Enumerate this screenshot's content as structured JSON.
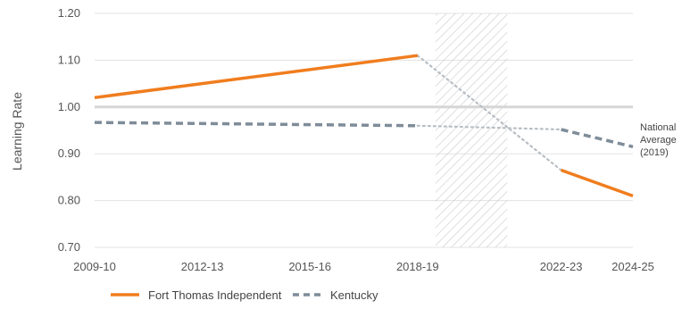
{
  "chart_data": {
    "type": "line",
    "title": "",
    "xlabel": "",
    "ylabel": "Learning Rate",
    "ylim": [
      0.7,
      1.2
    ],
    "yticks": [
      "0.70",
      "0.80",
      "0.90",
      "1.00",
      "1.10",
      "1.20"
    ],
    "xlim": [
      2009,
      2024
    ],
    "xticks": [
      {
        "label": "2009-10",
        "x": 2009
      },
      {
        "label": "2012-13",
        "x": 2012
      },
      {
        "label": "2015-16",
        "x": 2015
      },
      {
        "label": "2018-19",
        "x": 2018
      },
      {
        "label": "2022-23",
        "x": 2022
      },
      {
        "label": "2024-25",
        "x": 2024
      }
    ],
    "grid": "horizontal",
    "shaded_region": {
      "x": [
        2018.5,
        2020.5
      ],
      "pattern": "diagonal-hatch"
    },
    "reference_line": {
      "y": 1.0,
      "label": [
        "National",
        "Average",
        "(2019)"
      ]
    },
    "legend_position": "bottom-left",
    "series": [
      {
        "name": "Fort Thomas Independent",
        "color": "#F07D1E",
        "style": "solid",
        "points": [
          {
            "x": 2009,
            "y": 1.02
          },
          {
            "x": 2018,
            "y": 1.11
          },
          {
            "x": 2022,
            "y": 0.865
          },
          {
            "x": 2024,
            "y": 0.81
          }
        ],
        "gap_after_index": 1
      },
      {
        "name": "Kentucky",
        "color": "#7F8C99",
        "style": "dashed",
        "points": [
          {
            "x": 2009,
            "y": 0.967
          },
          {
            "x": 2018,
            "y": 0.96
          },
          {
            "x": 2022,
            "y": 0.952
          },
          {
            "x": 2024,
            "y": 0.915
          }
        ],
        "gap_after_index": 1
      }
    ]
  },
  "colors": {
    "grid": "#E3E3E3",
    "reference": "#D6D6D6",
    "connector": "#B8BEC4",
    "hatch": "#C9C9C9"
  }
}
